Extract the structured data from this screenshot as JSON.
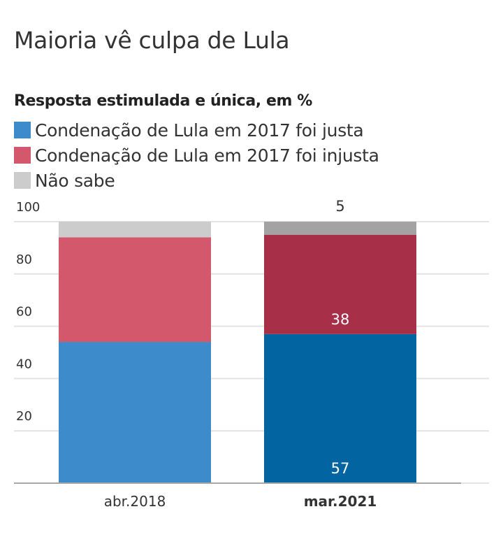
{
  "header": {
    "title": "Maioria vê culpa de Lula",
    "subtitle": "Resposta estimulada e única, em %"
  },
  "chart_data": {
    "type": "bar",
    "stacked": true,
    "title": "Maioria vê culpa de Lula",
    "subtitle": "Resposta estimulada e única, em %",
    "xlabel": "",
    "ylabel": "",
    "ylim": [
      0,
      100
    ],
    "yticks": [
      20,
      40,
      60,
      80,
      100
    ],
    "grid": true,
    "legend_position": "top-left",
    "categories": [
      "abr.2018",
      "mar.2021"
    ],
    "highlighted_category": "mar.2021",
    "series": [
      {
        "name": "Condenação de Lula em 2017 foi justa",
        "values": [
          54,
          57
        ],
        "colors": [
          "#3d8bcb",
          "#0265a2"
        ],
        "legend_color": "#3d8bcb",
        "labels": [
          null,
          "57"
        ]
      },
      {
        "name": "Condenação de Lula em 2017 foi injusta",
        "values": [
          40,
          38
        ],
        "colors": [
          "#d4586b",
          "#a82f48"
        ],
        "legend_color": "#d4586b",
        "labels": [
          null,
          "38"
        ]
      },
      {
        "name": "Não sabe",
        "values": [
          6,
          5
        ],
        "colors": [
          "#cccccc",
          "#a3a3a3"
        ],
        "legend_color": "#cccccc",
        "labels": [
          null,
          "5"
        ]
      }
    ]
  }
}
